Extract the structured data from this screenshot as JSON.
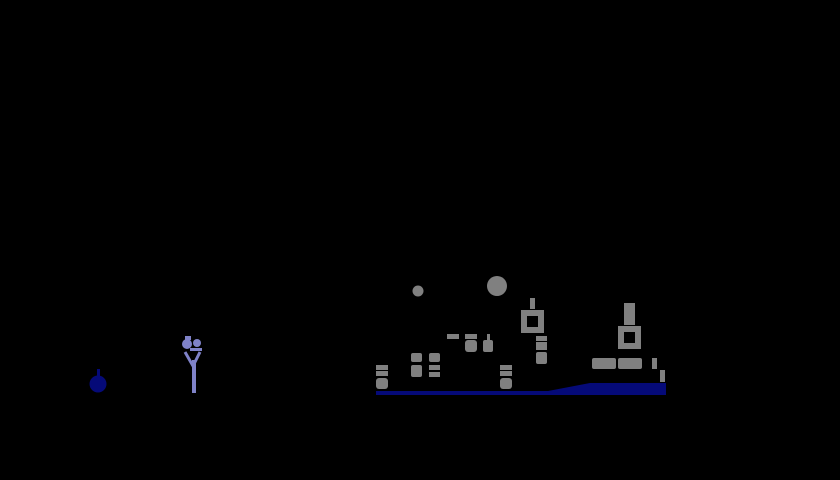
{
  "scene": {
    "background_color": "#000000",
    "ground_color": "#050a78",
    "structure_color": "#808080",
    "character_color": "#7f82c8",
    "bomb_color": "#050a78",
    "palette": {
      "dark_blue": "#050a78",
      "gray": "#808080",
      "lavender": "#7f82c8",
      "black": "#000000"
    },
    "objects": [
      {
        "name": "bomb",
        "kind": "bomb",
        "interactable": false
      },
      {
        "name": "player-character",
        "kind": "character",
        "interactable": true
      },
      {
        "name": "ground-strip",
        "kind": "terrain",
        "interactable": false
      },
      {
        "name": "block-structure",
        "kind": "destructible-blocks",
        "interactable": false
      },
      {
        "name": "boulder",
        "kind": "ball",
        "interactable": false
      },
      {
        "name": "pebble",
        "kind": "ball",
        "interactable": false
      }
    ]
  }
}
